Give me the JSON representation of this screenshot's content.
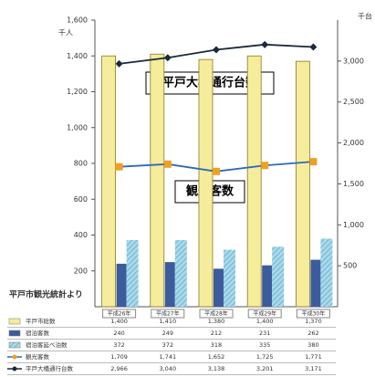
{
  "chart_data": {
    "type": "bar",
    "source": "平戸市観光統計より",
    "y_unit": "千人",
    "y2_unit": "千台",
    "annotations": [
      "平戸大橋通行台数",
      "観光客数"
    ],
    "categories": [
      "平成26年",
      "平成27年",
      "平成28年",
      "平成29年",
      "平成30年"
    ],
    "ylim": [
      0,
      1600
    ],
    "yticks": [
      {
        "value": 200,
        "label": "200"
      },
      {
        "value": 400,
        "label": "400"
      },
      {
        "value": 600,
        "label": "600"
      },
      {
        "value": 800,
        "label": "800"
      },
      {
        "value": 1000,
        "label": "1,000"
      },
      {
        "value": 1200,
        "label": "1,200"
      },
      {
        "value": 1400,
        "label": "1,400"
      },
      {
        "value": 1600,
        "label": "1,600"
      }
    ],
    "y2lim": [
      0,
      3500
    ],
    "y2ticks": [
      {
        "value": 500,
        "label": "500"
      },
      {
        "value": 1000,
        "label": "1,000"
      },
      {
        "value": 1500,
        "label": "1,500"
      },
      {
        "value": 2000,
        "label": "2,000"
      },
      {
        "value": 2500,
        "label": "2,500"
      },
      {
        "value": 3000,
        "label": "3,000"
      }
    ],
    "series": [
      {
        "name": "平戸市総数",
        "type": "bar",
        "color": "#f5ec9c",
        "values": [
          1400,
          1410,
          1380,
          1400,
          1370
        ],
        "value_labels": [
          "1,400",
          "1,410",
          "1,380",
          "1,400",
          "1,370"
        ]
      },
      {
        "name": "宿泊客数",
        "type": "bar",
        "color": "#3d5c9c",
        "values": [
          240,
          249,
          212,
          231,
          262
        ]
      },
      {
        "name": "宿泊客延べ泊数",
        "type": "bar",
        "color": "#a9d9ea",
        "values": [
          372,
          372,
          318,
          335,
          380
        ]
      },
      {
        "name": "観光客数",
        "type": "line",
        "axis": "y2",
        "color": "#f0a020",
        "values": [
          1709,
          1741,
          1652,
          1725,
          1771
        ],
        "value_labels": [
          "1,709",
          "1,741",
          "1,652",
          "1,725",
          "1,771"
        ]
      },
      {
        "name": "平戸大橋通行台数",
        "type": "line",
        "axis": "y2",
        "color": "#1a2a3a",
        "values": [
          2966,
          3040,
          3138,
          3201,
          3171
        ],
        "value_labels": [
          "2,966",
          "3,040",
          "3,138",
          "3,201",
          "3,171"
        ]
      }
    ]
  }
}
